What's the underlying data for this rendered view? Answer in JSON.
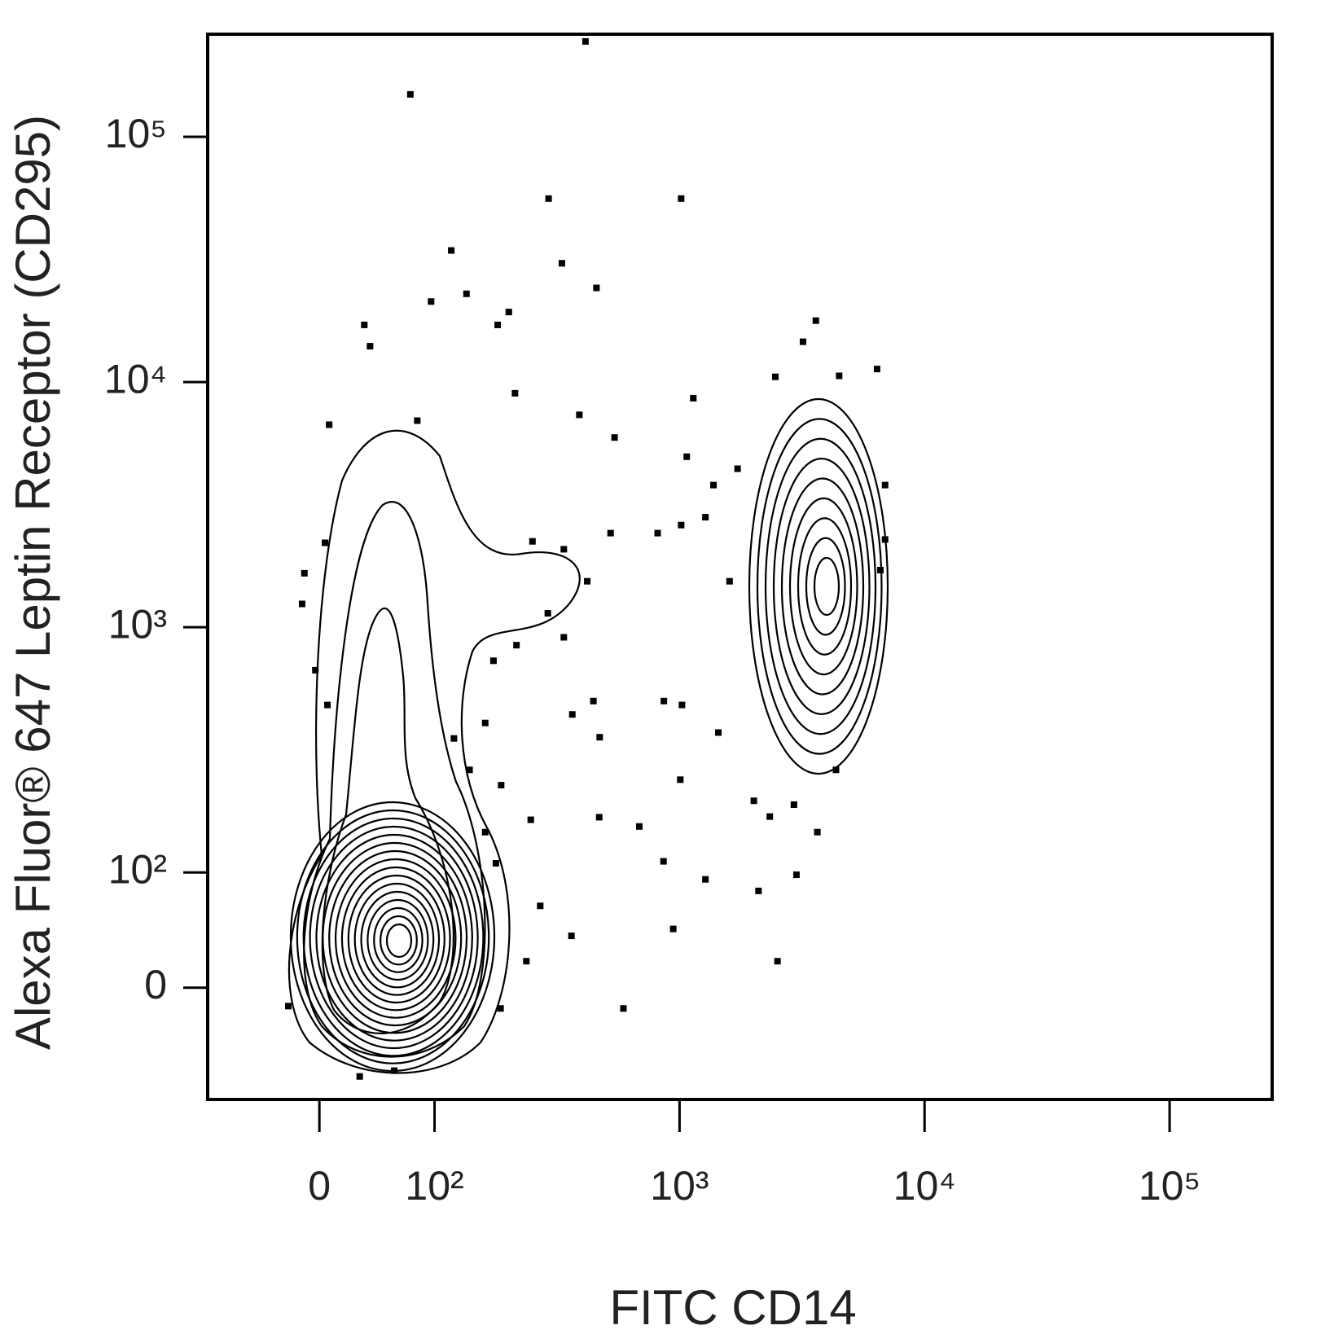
{
  "chart_data": {
    "type": "scatter",
    "x_label": "FITC  CD14",
    "y_label": "Alexa Fluor® 647 Leptin Receptor (CD295)",
    "scale": "biexponential",
    "color": "#000000",
    "xlim": [
      -97,
      262144
    ],
    "ylim": [
      -97,
      262144
    ],
    "xticks": [
      0,
      {
        "value": 100,
        "label": "10²"
      },
      {
        "value": 1000,
        "label": "10³"
      },
      {
        "value": 10000,
        "label": "10⁴"
      },
      {
        "value": 100000,
        "label": "10⁵"
      }
    ],
    "yticks": [
      0,
      {
        "value": 100,
        "label": "10²"
      },
      {
        "value": 1000,
        "label": "10³"
      },
      {
        "value": 10000,
        "label": "10⁴"
      },
      {
        "value": 100000,
        "label": "10⁵"
      }
    ],
    "x": [
      79,
      413,
      292,
      1015,
      117,
      331,
      458,
      97,
      135,
      201,
      181,
      39,
      44,
      3600,
      3190,
      6400,
      4480,
      2460,
      1138,
      213,
      390,
      85,
      8.5,
      543,
      1070,
      6900,
      6900,
      6600,
      4.9,
      -13,
      -15,
      -3.5,
      7,
      1023,
      445,
      472,
      863,
      365,
      1440,
      1007,
      4350,
      247,
      470,
      685,
      3650,
      860,
      3000,
      2510,
      942,
      362,
      237,
      590,
      2100,
      1275,
      270,
      186,
      -27,
      35,
      65,
      251,
      337,
      523,
      814,
      1015,
      420,
      337,
      174,
      216,
      290,
      161,
      139,
      187,
      120,
      1375,
      1725,
      1275,
      1600,
      2010,
      2335,
      2930,
      161,
      178
    ],
    "values": [
      149000,
      245000,
      56000,
      56000,
      34400,
      30500,
      24200,
      21300,
      22900,
      19300,
      17100,
      17100,
      14000,
      17800,
      14600,
      11300,
      10600,
      10500,
      8590,
      9000,
      7350,
      6960,
      6700,
      5940,
      4960,
      3800,
      2280,
      1710,
      2210,
      1660,
      1245,
      668,
      482,
      482,
      500,
      356,
      500,
      441,
      372,
      239,
      262,
      164,
      168,
      154,
      146,
      111,
      98,
      23,
      51,
      45,
      23,
      -18,
      84,
      94,
      71,
      -18,
      -16,
      -77,
      -72,
      2240,
      2080,
      2420,
      2420,
      2610,
      1540,
      910,
      730,
      845,
      1140,
      407,
      262,
      227,
      352,
      3800,
      4430,
      2810,
      1540,
      196,
      169,
      189,
      146,
      109
    ]
  }
}
